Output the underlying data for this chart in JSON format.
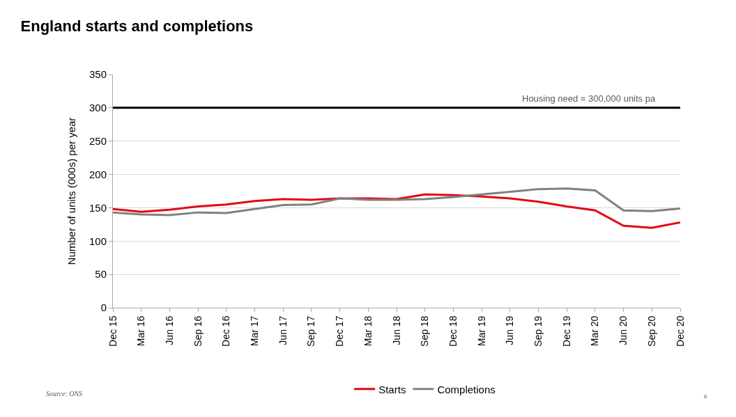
{
  "chart_data": {
    "type": "line",
    "title": "England starts and completions",
    "ylabel": "Number of units (000s) per year",
    "categories": [
      "Dec 15",
      "Mar 16",
      "Jun 16",
      "Sep 16",
      "Dec 16",
      "Mar 17",
      "Jun 17",
      "Sep 17",
      "Dec 17",
      "Mar 18",
      "Jun 18",
      "Sep 18",
      "Dec 18",
      "Mar 19",
      "Jun 19",
      "Sep 19",
      "Dec 19",
      "Mar 20",
      "Jun 20",
      "Sep 20",
      "Dec 20"
    ],
    "series": [
      {
        "name": "Starts",
        "color": "#e30613",
        "values": [
          148,
          144,
          147,
          152,
          155,
          160,
          163,
          162,
          164,
          164,
          163,
          170,
          169,
          167,
          164,
          159,
          152,
          146,
          123,
          120,
          128
        ]
      },
      {
        "name": "Completions",
        "color": "#808080",
        "values": [
          143,
          140,
          139,
          143,
          142,
          148,
          154,
          155,
          164,
          162,
          162,
          163,
          166,
          170,
          174,
          178,
          179,
          176,
          146,
          145,
          149
        ]
      }
    ],
    "ylim": [
      0,
      350
    ],
    "yticks": [
      0,
      50,
      100,
      150,
      200,
      250,
      300,
      350
    ],
    "grid": "y",
    "legend": "bottom",
    "marker": "none",
    "line_style": "solid",
    "ref_lines": [
      {
        "axis": "y",
        "value": 300,
        "label": "Housing need = 300,000 units pa",
        "color": "#000000"
      }
    ],
    "annotations": [
      "Source: ONS",
      "6"
    ]
  }
}
